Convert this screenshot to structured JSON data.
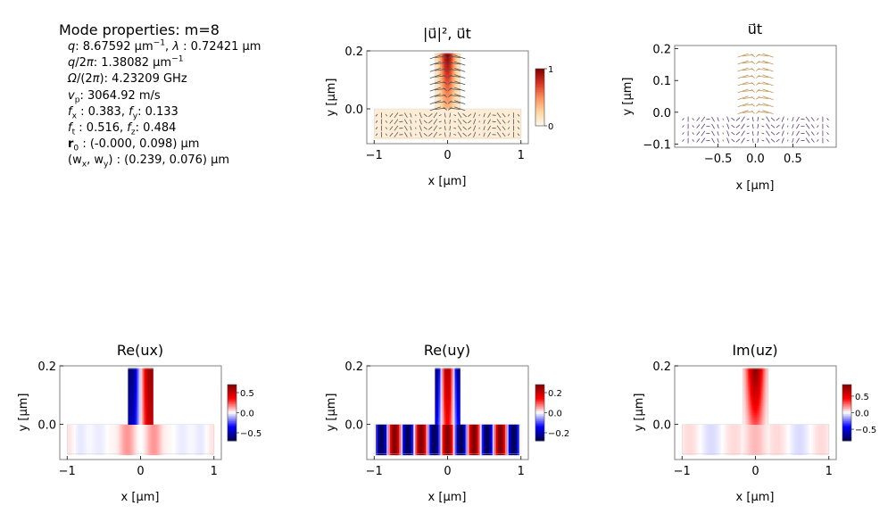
{
  "properties": {
    "title": "Mode properties: m=8",
    "lines": [
      {
        "parts": [
          {
            "t": "q",
            "s": "i"
          },
          {
            "t": ": 8.67592 µm"
          },
          {
            "t": "−1",
            "s": "sup"
          },
          {
            "t": ", "
          },
          {
            "t": "λ",
            "s": "i"
          },
          {
            "t": " :  0.72421 µm"
          }
        ]
      },
      {
        "parts": [
          {
            "t": "q",
            "s": "i"
          },
          {
            "t": "/2"
          },
          {
            "t": "π",
            "s": "i"
          },
          {
            "t": ": 1.38082 µm"
          },
          {
            "t": "−1",
            "s": "sup"
          }
        ]
      },
      {
        "parts": [
          {
            "t": "Ω",
            "s": "i"
          },
          {
            "t": "/(2"
          },
          {
            "t": "π",
            "s": "i"
          },
          {
            "t": "): 4.23209 GHz"
          }
        ]
      },
      {
        "parts": [
          {
            "t": "v",
            "s": "i"
          },
          {
            "t": "p",
            "s": "sub"
          },
          {
            "t": ": 3064.92 m/s"
          }
        ]
      },
      {
        "parts": [
          {
            "t": "f",
            "s": "i"
          },
          {
            "t": "x",
            "s": "sub"
          },
          {
            "t": " :  0.383, "
          },
          {
            "t": "f",
            "s": "i"
          },
          {
            "t": "y",
            "s": "sub"
          },
          {
            "t": ": 0.133"
          }
        ]
      },
      {
        "parts": [
          {
            "t": "f",
            "s": "i"
          },
          {
            "t": "t",
            "s": "sub"
          },
          {
            "t": " :  0.516, "
          },
          {
            "t": "f",
            "s": "i"
          },
          {
            "t": "z",
            "s": "sub"
          },
          {
            "t": ": 0.484"
          }
        ]
      },
      {
        "parts": [
          {
            "t": "r",
            "s": "b"
          },
          {
            "t": "0",
            "s": "sub"
          },
          {
            "t": " :  (-0.000, 0.098) µm"
          }
        ]
      },
      {
        "parts": [
          {
            "t": "(w"
          },
          {
            "t": "x",
            "s": "sub"
          },
          {
            "t": ", w"
          },
          {
            "t": "y",
            "s": "sub"
          },
          {
            "t": ") :  (0.239, 0.076) µm"
          }
        ]
      }
    ]
  },
  "chart_data": [
    {
      "type": "heatmap",
      "title": "|u⃗|², u⃗t",
      "xlabel": "x [µm]",
      "ylabel": "y [µm]",
      "xlim": [
        -1.1,
        1.1
      ],
      "ylim": [
        -0.12,
        0.2
      ],
      "xticks": [
        {
          "v": -1,
          "label": "−1"
        },
        {
          "v": 0,
          "label": "0"
        },
        {
          "v": 1,
          "label": "1"
        }
      ],
      "yticks": [
        {
          "v": 0.2,
          "label": "0.2"
        },
        {
          "v": 0.0,
          "label": "0.0"
        }
      ],
      "colormap": "OrRd",
      "field": "intensity",
      "quiver": true,
      "colorbar": {
        "ticks": [
          {
            "v": 1,
            "label": "1"
          },
          {
            "v": 0,
            "label": "0"
          }
        ],
        "range": [
          0,
          1
        ]
      }
    },
    {
      "type": "quiver",
      "title": "u⃗t",
      "xlabel": "x [µm]",
      "ylabel": "y [µm]",
      "xlim": [
        -1.08,
        1.08
      ],
      "ylim": [
        -0.11,
        0.21
      ],
      "xticks": [
        {
          "v": -0.5,
          "label": "−0.5"
        },
        {
          "v": 0,
          "label": "0.0"
        },
        {
          "v": 0.5,
          "label": "0.5"
        }
      ],
      "yticks": [
        {
          "v": 0.2,
          "label": "0.2"
        },
        {
          "v": 0.1,
          "label": "0.1"
        },
        {
          "v": 0.0,
          "label": "0.0"
        },
        {
          "v": -0.1,
          "label": "−0.1"
        }
      ],
      "field": "vectors"
    },
    {
      "type": "heatmap",
      "title": "Re(ux)",
      "xlabel": "x [µm]",
      "ylabel": "y [µm]",
      "xlim": [
        -1.1,
        1.1
      ],
      "ylim": [
        -0.12,
        0.2
      ],
      "xticks": [
        {
          "v": -1,
          "label": "−1"
        },
        {
          "v": 0,
          "label": "0"
        },
        {
          "v": 1,
          "label": "1"
        }
      ],
      "yticks": [
        {
          "v": 0.2,
          "label": "0.2"
        },
        {
          "v": 0.0,
          "label": "0.0"
        }
      ],
      "colormap": "seismic",
      "field": "ux",
      "colorbar": {
        "ticks": [
          {
            "v": 0.5,
            "label": "0.5"
          },
          {
            "v": 0,
            "label": "0.0"
          },
          {
            "v": -0.5,
            "label": "−0.5"
          }
        ],
        "range": [
          -0.7,
          0.7
        ]
      }
    },
    {
      "type": "heatmap",
      "title": "Re(uy)",
      "xlabel": "x [µm]",
      "ylabel": "y [µm]",
      "xlim": [
        -1.1,
        1.1
      ],
      "ylim": [
        -0.12,
        0.2
      ],
      "xticks": [
        {
          "v": -1,
          "label": "−1"
        },
        {
          "v": 0,
          "label": "0"
        },
        {
          "v": 1,
          "label": "1"
        }
      ],
      "yticks": [
        {
          "v": 0.2,
          "label": "0.2"
        },
        {
          "v": 0.0,
          "label": "0.0"
        }
      ],
      "colormap": "seismic",
      "field": "uy",
      "colorbar": {
        "ticks": [
          {
            "v": 0.2,
            "label": "0.2"
          },
          {
            "v": 0,
            "label": "0.0"
          },
          {
            "v": -0.2,
            "label": "−0.2"
          }
        ],
        "range": [
          -0.28,
          0.28
        ]
      }
    },
    {
      "type": "heatmap",
      "title": "Im(uz)",
      "xlabel": "x [µm]",
      "ylabel": "y [µm]",
      "xlim": [
        -1.1,
        1.1
      ],
      "ylim": [
        -0.12,
        0.2
      ],
      "xticks": [
        {
          "v": -1,
          "label": "−1"
        },
        {
          "v": 0,
          "label": "0"
        },
        {
          "v": 1,
          "label": "1"
        }
      ],
      "yticks": [
        {
          "v": 0.2,
          "label": "0.2"
        },
        {
          "v": 0.0,
          "label": "0.0"
        }
      ],
      "colormap": "seismic",
      "field": "uz",
      "colorbar": {
        "ticks": [
          {
            "v": 0.5,
            "label": "0.5"
          },
          {
            "v": 0,
            "label": "0.0"
          },
          {
            "v": -0.5,
            "label": "−0.5"
          }
        ],
        "range": [
          -0.85,
          0.85
        ]
      }
    }
  ],
  "colors": {
    "frame": "#808080",
    "ridge_outline": "#c8c8c8"
  }
}
